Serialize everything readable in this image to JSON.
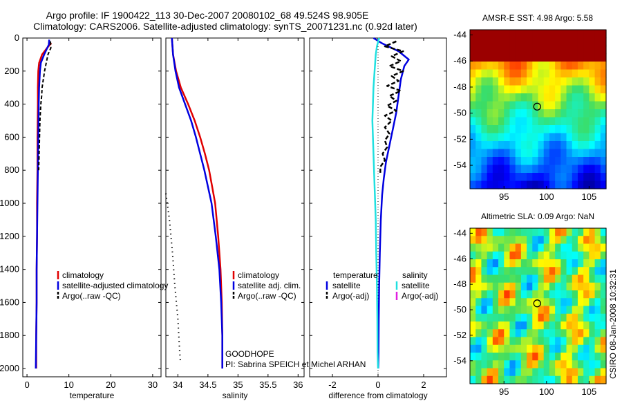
{
  "figure": {
    "title_line1": "Argo profile: IF 1900422_113 30-Dec-2007 20080102_68 49.524S 98.905E",
    "title_line2": "Climatology: CARS2006. Satellite-adjusted climatology: synTS_20071231.nc (0.92d later)",
    "side_caption": "CSIRO 08-Jan-2008 10:32:31"
  },
  "panel_temperature": {
    "xlabel": "temperature",
    "legend": [
      "climatology",
      "satellite-adjusted climatology",
      "Argo(..raw -QC)"
    ]
  },
  "panel_salinity": {
    "xlabel": "salinity",
    "legend": [
      "climatology",
      "satellite adj. clim.",
      "Argo(..raw -QC)"
    ],
    "note_line1": "GOODHOPE",
    "note_line2": "PI: Sabrina SPEICH et Michel ARHAN"
  },
  "panel_difference": {
    "xlabel": "difference from climatology",
    "legend_left_title": "temperature",
    "legend_left": [
      "satellite",
      "Argo(-adj)"
    ],
    "legend_right_title": "salinity",
    "legend_right": [
      "satellite",
      "Argo(-adj)"
    ]
  },
  "map_sst": {
    "title": "AMSR-E SST: 4.98 Argo: 5.58",
    "xticks": [
      "95",
      "100",
      "105"
    ],
    "yticks": [
      "-44",
      "-46",
      "-48",
      "-50",
      "-52",
      "-54"
    ],
    "lon_range": [
      91,
      107
    ],
    "lat_range": [
      -55.8,
      -43.6
    ],
    "marker": {
      "lon": 98.9,
      "lat": -49.5
    }
  },
  "map_sla": {
    "title": "Altimetric SLA: 0.09 Argo: NaN",
    "xticks": [
      "95",
      "100",
      "105"
    ],
    "yticks": [
      "-44",
      "-46",
      "-48",
      "-50",
      "-52",
      "-54"
    ],
    "lon_range": [
      91,
      107
    ],
    "lat_range": [
      -55.8,
      -43.6
    ],
    "marker": {
      "lon": 98.9,
      "lat": -49.5
    }
  },
  "colors": {
    "climatology": "#e00000",
    "satellite": "#0000e0",
    "argo": "#000000",
    "salinity_satellite": "#20e0e0",
    "salinity_argo": "#e020e0"
  },
  "chart_data": [
    {
      "type": "line",
      "name": "temperature",
      "xlabel": "temperature",
      "ylabel": "",
      "xlim": [
        -1,
        32
      ],
      "ylim": [
        2050,
        0
      ],
      "xticks": [
        0,
        10,
        20,
        30
      ],
      "yticks": [
        0,
        200,
        400,
        600,
        800,
        1000,
        1200,
        1400,
        1600,
        1800,
        2000
      ],
      "series": [
        {
          "name": "climatology",
          "depth": [
            30,
            60,
            100,
            150,
            200,
            300,
            400,
            600,
            800,
            1000,
            1200,
            1400,
            1600,
            1800,
            2000
          ],
          "values": [
            5.8,
            4.8,
            3.6,
            2.9,
            2.7,
            2.6,
            2.6,
            2.5,
            2.5,
            2.4,
            2.4,
            2.3,
            2.3,
            2.2,
            2.2
          ]
        },
        {
          "name": "satellite-adjusted climatology",
          "depth": [
            10,
            40,
            100,
            150,
            200,
            300,
            400,
            600,
            800,
            1000,
            1200,
            1400,
            1600,
            1800,
            2000
          ],
          "values": [
            5.3,
            5.2,
            4.1,
            3.3,
            3.1,
            2.9,
            2.8,
            2.7,
            2.6,
            2.5,
            2.4,
            2.3,
            2.3,
            2.2,
            2.1
          ]
        },
        {
          "name": "Argo(..raw -QC)",
          "depth": [
            20,
            60,
            100,
            150,
            200,
            250,
            300,
            350,
            400,
            500,
            600,
            700,
            800
          ],
          "values": [
            5.6,
            5.7,
            5.0,
            4.6,
            4.2,
            3.9,
            3.6,
            3.5,
            3.3,
            3.1,
            3.0,
            2.9,
            2.8
          ]
        }
      ]
    },
    {
      "type": "line",
      "name": "salinity",
      "xlabel": "salinity",
      "ylabel": "",
      "xlim": [
        33.8,
        36.1
      ],
      "ylim": [
        2050,
        0
      ],
      "xticks": [
        34,
        34.5,
        35,
        35.5,
        36
      ],
      "yticks": [
        0,
        200,
        400,
        600,
        800,
        1000,
        1200,
        1400,
        1600,
        1800,
        2000
      ],
      "series": [
        {
          "name": "climatology",
          "depth": [
            0,
            100,
            200,
            300,
            400,
            500,
            600,
            700,
            800,
            900,
            1000,
            1200,
            1400,
            1600,
            1800,
            2000
          ],
          "values": [
            33.9,
            33.92,
            33.97,
            34.05,
            34.17,
            34.28,
            34.37,
            34.45,
            34.52,
            34.57,
            34.62,
            34.67,
            34.71,
            34.73,
            34.74,
            34.74
          ]
        },
        {
          "name": "satellite adj. clim.",
          "depth": [
            0,
            100,
            200,
            300,
            400,
            500,
            600,
            700,
            800,
            900,
            1000,
            1200,
            1400,
            1600,
            1800,
            2000
          ],
          "values": [
            33.9,
            33.92,
            33.96,
            34.02,
            34.12,
            34.22,
            34.3,
            34.37,
            34.44,
            34.5,
            34.56,
            34.63,
            34.69,
            34.72,
            34.74,
            34.74
          ]
        },
        {
          "name": "Argo(..raw -QC)",
          "depth": [
            940,
            1100,
            1300,
            1500,
            1700,
            1900,
            1950
          ],
          "values": [
            33.8,
            33.86,
            33.91,
            33.95,
            34.0,
            34.03,
            34.04
          ]
        }
      ]
    },
    {
      "type": "line",
      "name": "difference from climatology",
      "xlabel": "difference from climatology",
      "ylabel": "",
      "xlim": [
        -3,
        3
      ],
      "ylim": [
        2050,
        0
      ],
      "xticks": [
        -2,
        0,
        2
      ],
      "yticks": [
        0,
        200,
        400,
        600,
        800,
        1000,
        1200,
        1400,
        1600,
        1800,
        2000
      ],
      "series": [
        {
          "name": "temperature satellite",
          "depth": [
            0,
            30,
            80,
            130,
            170,
            250,
            350,
            450,
            550,
            650,
            750,
            850,
            950,
            1100,
            1300,
            1500,
            1700,
            1900,
            2000
          ],
          "values": [
            -0.2,
            0.15,
            0.9,
            1.35,
            1.15,
            1.0,
            0.9,
            0.8,
            0.65,
            0.5,
            0.35,
            0.25,
            0.18,
            0.12,
            0.08,
            0.05,
            0.03,
            0.02,
            0.01
          ]
        },
        {
          "name": "temperature Argo(-adj)",
          "depth": [
            20,
            50,
            80,
            110,
            140,
            170,
            200,
            230,
            260,
            290,
            320,
            350,
            380,
            410,
            440,
            470,
            500,
            540,
            580,
            620,
            660,
            700,
            740,
            780,
            820
          ],
          "values": [
            0.8,
            0.3,
            1.1,
            0.6,
            1.0,
            0.5,
            1.1,
            0.6,
            0.9,
            0.4,
            1.0,
            0.5,
            0.8,
            0.4,
            0.8,
            0.3,
            0.6,
            0.3,
            0.5,
            0.3,
            0.4,
            0.2,
            0.3,
            0.1,
            0.1
          ]
        },
        {
          "name": "salinity satellite",
          "depth": [
            0,
            50,
            100,
            200,
            300,
            500,
            700,
            900,
            1100,
            1300,
            1500,
            1700,
            1900,
            2000
          ],
          "values": [
            0.05,
            -0.05,
            -0.1,
            -0.15,
            -0.2,
            -0.25,
            -0.2,
            -0.15,
            -0.1,
            -0.08,
            -0.05,
            -0.03,
            -0.02,
            0.0
          ]
        },
        {
          "name": "salinity Argo(-adj)",
          "depth": [],
          "values": []
        }
      ]
    }
  ]
}
